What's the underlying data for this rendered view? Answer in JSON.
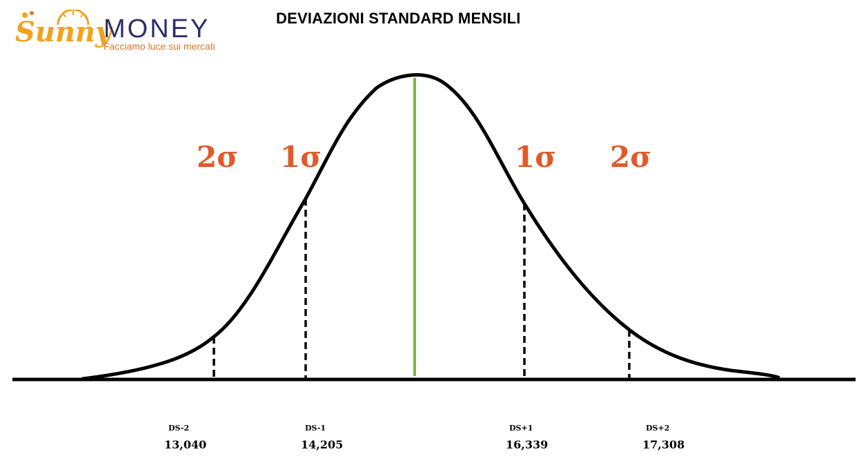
{
  "logo": {
    "brand_sunny": "Sunny",
    "brand_money": "MONEY",
    "tagline": "Facciamo luce sui mercati",
    "colors": {
      "sunny": "#f2a31b",
      "money": "#2c2f66",
      "tagline": "#e0742a"
    }
  },
  "title": "DEVIAZIONI STANDARD MENSILI",
  "sigma_labels": {
    "left_2": "2σ",
    "left_1": "1σ",
    "right_1": "1σ",
    "right_2": "2σ"
  },
  "deviations": [
    {
      "label": "DS-2",
      "value": "13,040"
    },
    {
      "label": "DS-1",
      "value": "14,205"
    },
    {
      "label": "DS+1",
      "value": "16,339"
    },
    {
      "label": "DS+2",
      "value": "17,308"
    }
  ],
  "colors": {
    "curve": "#000000",
    "mean_line": "#7ab648",
    "sigma": "#e05a2b"
  }
}
